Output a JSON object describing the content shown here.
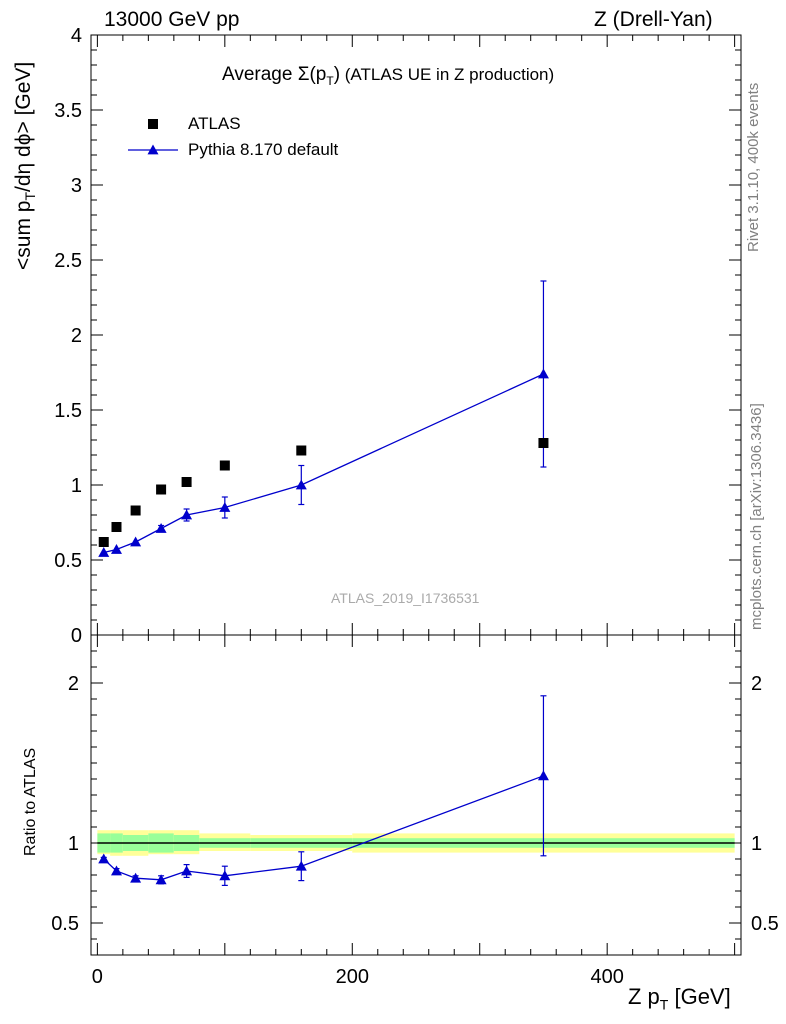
{
  "header": {
    "energy": "13000 GeV pp",
    "process": "Z (Drell-Yan)"
  },
  "side": {
    "rivet": "Rivet 3.1.10,  400k events",
    "mcplots": "mcplots.cern.ch [arXiv:1306.3436]"
  },
  "watermark": "ATLAS_2019_I1736531",
  "colors": {
    "data": "#000000",
    "mc": "#0000cc",
    "band_inner": "#99ff99",
    "band_outer": "#ffff99"
  },
  "chart_data": [
    {
      "id": "main",
      "type": "scatter",
      "title_prefix": "Average ",
      "title_symbol": "Σ(p",
      "title_sub": "T",
      "title_close": ")",
      "title_suffix": " (ATLAS UE in Z production)",
      "ylabel_main": "<sum p",
      "ylabel_sub": "T",
      "ylabel_rest": "/dη dϕ> [GeV]",
      "xlim": [
        -5,
        505
      ],
      "ylim": [
        0,
        4
      ],
      "yticks": [
        0,
        0.5,
        1,
        1.5,
        2,
        2.5,
        3,
        3.5,
        4
      ],
      "yticklabels": [
        "0",
        "0.5",
        "1",
        "1.5",
        "2",
        "2.5",
        "3",
        "3.5",
        "4"
      ],
      "legend_position": "top-left",
      "series": [
        {
          "name": "ATLAS",
          "marker": "square",
          "x": [
            5,
            15,
            30,
            50,
            70,
            100,
            160,
            350
          ],
          "y": [
            0.62,
            0.72,
            0.83,
            0.97,
            1.02,
            1.13,
            1.23,
            1.28
          ],
          "yerr": [
            0,
            0,
            0,
            0,
            0,
            0,
            0,
            0
          ]
        },
        {
          "name": "Pythia 8.170 default",
          "marker": "triangle",
          "x": [
            5,
            15,
            30,
            50,
            70,
            100,
            160,
            350
          ],
          "y": [
            0.55,
            0.57,
            0.62,
            0.71,
            0.8,
            0.85,
            1.0,
            1.74
          ],
          "yerr": [
            0.01,
            0.01,
            0.01,
            0.02,
            0.04,
            0.07,
            0.13,
            0.62
          ]
        }
      ]
    },
    {
      "id": "ratio",
      "type": "scatter",
      "ylabel": "Ratio to ATLAS",
      "xlabel_main": "Z p",
      "xlabel_sub": "T",
      "xlabel_rest": " [GeV]",
      "xlim": [
        -5,
        505
      ],
      "ylim": [
        0.3,
        2.3
      ],
      "yticks": [
        0.5,
        1,
        2
      ],
      "yticklabels": [
        "0.5",
        "1",
        "2"
      ],
      "xticks": [
        0,
        200,
        400
      ],
      "xticklabels": [
        "0",
        "200",
        "400"
      ],
      "reference_line": 1,
      "band": {
        "edges": [
          0,
          10,
          20,
          40,
          60,
          80,
          120,
          200,
          500
        ],
        "inner": [
          [
            0.94,
            1.06
          ],
          [
            0.94,
            1.06
          ],
          [
            0.95,
            1.05
          ],
          [
            0.94,
            1.06
          ],
          [
            0.95,
            1.05
          ],
          [
            0.97,
            1.03
          ],
          [
            0.97,
            1.03
          ],
          [
            0.97,
            1.03
          ]
        ],
        "outer": [
          [
            0.93,
            1.08
          ],
          [
            0.92,
            1.08
          ],
          [
            0.92,
            1.08
          ],
          [
            0.93,
            1.08
          ],
          [
            0.93,
            1.08
          ],
          [
            0.95,
            1.06
          ],
          [
            0.95,
            1.05
          ],
          [
            0.94,
            1.06
          ]
        ]
      },
      "series": [
        {
          "name": "Pythia 8.170 default",
          "x": [
            5,
            15,
            30,
            50,
            70,
            100,
            160,
            350
          ],
          "y": [
            0.9,
            0.825,
            0.78,
            0.77,
            0.825,
            0.795,
            0.855,
            1.42
          ],
          "yerr": [
            0.01,
            0.015,
            0.015,
            0.025,
            0.04,
            0.06,
            0.09,
            0.5
          ]
        }
      ]
    }
  ]
}
